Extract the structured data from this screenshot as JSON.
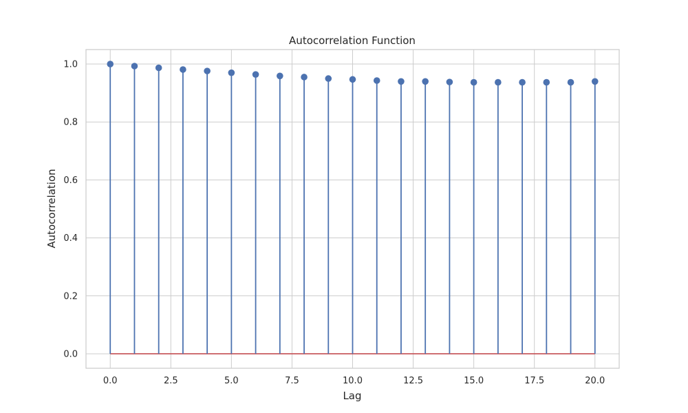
{
  "chart_data": {
    "type": "stem",
    "title": "Autocorrelation Function",
    "xlabel": "Lag",
    "ylabel": "Autocorrelation",
    "xlim": [
      -1,
      21
    ],
    "ylim": [
      -0.05,
      1.05
    ],
    "x_ticks": [
      0.0,
      2.5,
      5.0,
      7.5,
      10.0,
      12.5,
      15.0,
      17.5,
      20.0
    ],
    "x_tick_labels": [
      "0.0",
      "2.5",
      "5.0",
      "7.5",
      "10.0",
      "12.5",
      "15.0",
      "17.5",
      "20.0"
    ],
    "y_ticks": [
      0.0,
      0.2,
      0.4,
      0.6,
      0.8,
      1.0
    ],
    "y_tick_labels": [
      "0.0",
      "0.2",
      "0.4",
      "0.6",
      "0.8",
      "1.0"
    ],
    "grid": true,
    "x": [
      0,
      1,
      2,
      3,
      4,
      5,
      6,
      7,
      8,
      9,
      10,
      11,
      12,
      13,
      14,
      15,
      16,
      17,
      18,
      19,
      20
    ],
    "values": [
      1.0,
      0.993,
      0.987,
      0.981,
      0.976,
      0.97,
      0.964,
      0.959,
      0.955,
      0.95,
      0.947,
      0.943,
      0.94,
      0.94,
      0.938,
      0.937,
      0.937,
      0.937,
      0.937,
      0.937,
      0.94
    ],
    "baseline": 0.0,
    "colors": {
      "stem": "#4c72b0",
      "marker": "#4c72b0",
      "baseline": "#c44e52",
      "grid": "#cccccc",
      "text": "#262626"
    }
  }
}
